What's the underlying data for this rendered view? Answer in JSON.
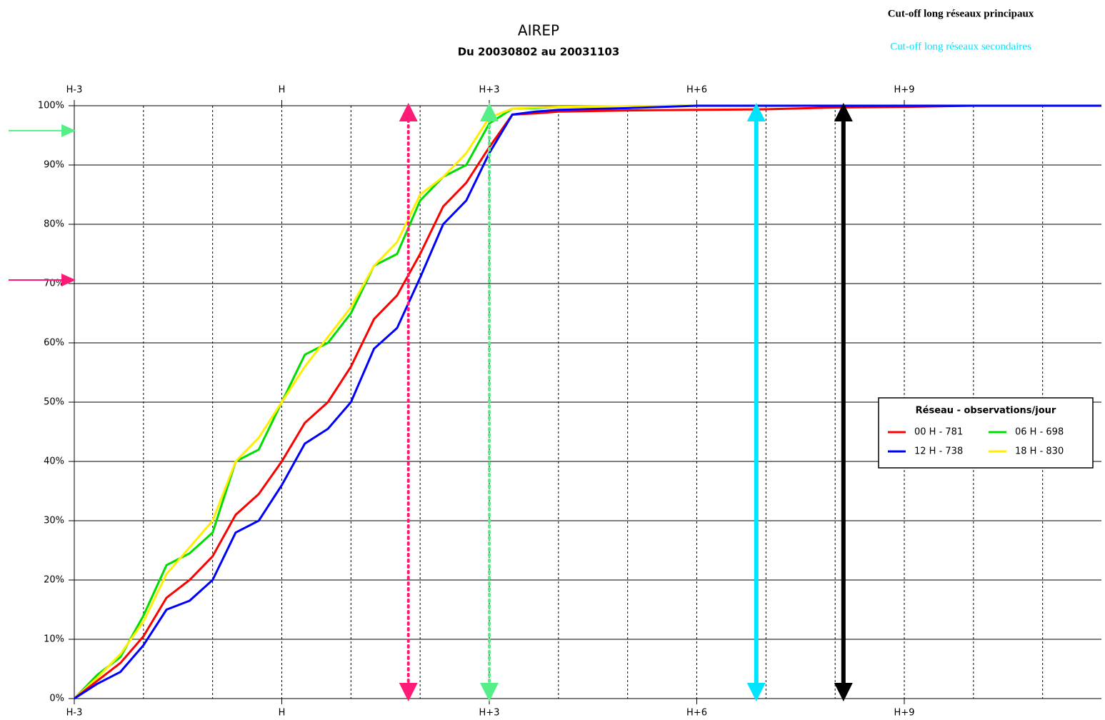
{
  "chart_data": {
    "type": "line",
    "title": "AIREP",
    "subtitle": "Du 20030802 au 20031103",
    "annotations": [
      "Cut-off long réseaux principaux",
      "Cut-off long réseaux secondaires"
    ],
    "annotation_colors": [
      "#000000",
      "#00e5ff"
    ],
    "legend_title": "Réseau - observations/jour",
    "legend": "right",
    "x": [
      -3,
      -2.667,
      -2.333,
      -2,
      -1.667,
      -1.333,
      -1,
      -0.667,
      -0.333,
      0,
      0.333,
      0.667,
      1,
      1.333,
      1.667,
      2,
      2.333,
      2.667,
      3,
      3.333,
      3.667,
      4,
      5,
      6,
      7,
      8,
      9,
      10,
      11.85
    ],
    "series": [
      {
        "name": "00 H - 781",
        "color": "#ff0000",
        "values": [
          0,
          3,
          6,
          10.5,
          17,
          20,
          24,
          31,
          34.5,
          40,
          46.5,
          50,
          56,
          64,
          68,
          75,
          83,
          87,
          93,
          98.5,
          98.7,
          99,
          99.2,
          99.3,
          99.4,
          99.7,
          99.8,
          100,
          100
        ]
      },
      {
        "name": "06 H - 698",
        "color": "#00dd00",
        "values": [
          0,
          4,
          7,
          14,
          22.5,
          24.5,
          28,
          40,
          42,
          50,
          58,
          60,
          65,
          73,
          75,
          84,
          88,
          90,
          97,
          99.5,
          99.6,
          99.8,
          99.9,
          100,
          100,
          100,
          100,
          100,
          100
        ]
      },
      {
        "name": "12 H - 738",
        "color": "#0000ff",
        "values": [
          0,
          2.5,
          4.5,
          9,
          15,
          16.5,
          20,
          28,
          30,
          36,
          43,
          45.5,
          50,
          59,
          62.5,
          71,
          80,
          84,
          92,
          98.5,
          99,
          99.3,
          99.6,
          100,
          100,
          100,
          100,
          100,
          100
        ]
      },
      {
        "name": "18 H - 830",
        "color": "#ffee00",
        "values": [
          0,
          3.5,
          7.5,
          13,
          21,
          25.5,
          30,
          40,
          44,
          50,
          56,
          61,
          66,
          73,
          77,
          85,
          88,
          92,
          98,
          99.5,
          99.7,
          99.8,
          99.9,
          100,
          100,
          100,
          100,
          100,
          100
        ]
      }
    ],
    "xlim": [
      -3,
      11.85
    ],
    "xticks": [
      {
        "value": -3,
        "label": "H-3"
      },
      {
        "value": 0,
        "label": "H"
      },
      {
        "value": 3,
        "label": "H+3"
      },
      {
        "value": 6,
        "label": "H+6"
      },
      {
        "value": 9,
        "label": "H+9"
      }
    ],
    "xminor": [
      -2,
      -1,
      1,
      2,
      4,
      5,
      7,
      8,
      10,
      11
    ],
    "ylim": [
      0,
      100
    ],
    "yticks": [
      {
        "value": 0,
        "label": "0%"
      },
      {
        "value": 10,
        "label": "10%"
      },
      {
        "value": 20,
        "label": "20%"
      },
      {
        "value": 30,
        "label": "30%"
      },
      {
        "value": 40,
        "label": "40%"
      },
      {
        "value": 50,
        "label": "50%"
      },
      {
        "value": 60,
        "label": "60%"
      },
      {
        "value": 70,
        "label": "70%"
      },
      {
        "value": 80,
        "label": "80%"
      },
      {
        "value": 90,
        "label": "90%"
      },
      {
        "value": 100,
        "label": "100%"
      }
    ],
    "grid": true,
    "vlines": [
      {
        "x": 1.83,
        "color": "#ff1a75",
        "style": "dotted"
      },
      {
        "x": 3.0,
        "color": "#55ee88",
        "style": "dotted"
      },
      {
        "x": 6.86,
        "color": "#00e5ff",
        "style": "solid"
      },
      {
        "x": 8.12,
        "color": "#000000",
        "style": "solid"
      }
    ],
    "hmarks": [
      {
        "y": 95.8,
        "color": "#55ee88"
      },
      {
        "y": 70.6,
        "color": "#ff1a75"
      }
    ]
  }
}
